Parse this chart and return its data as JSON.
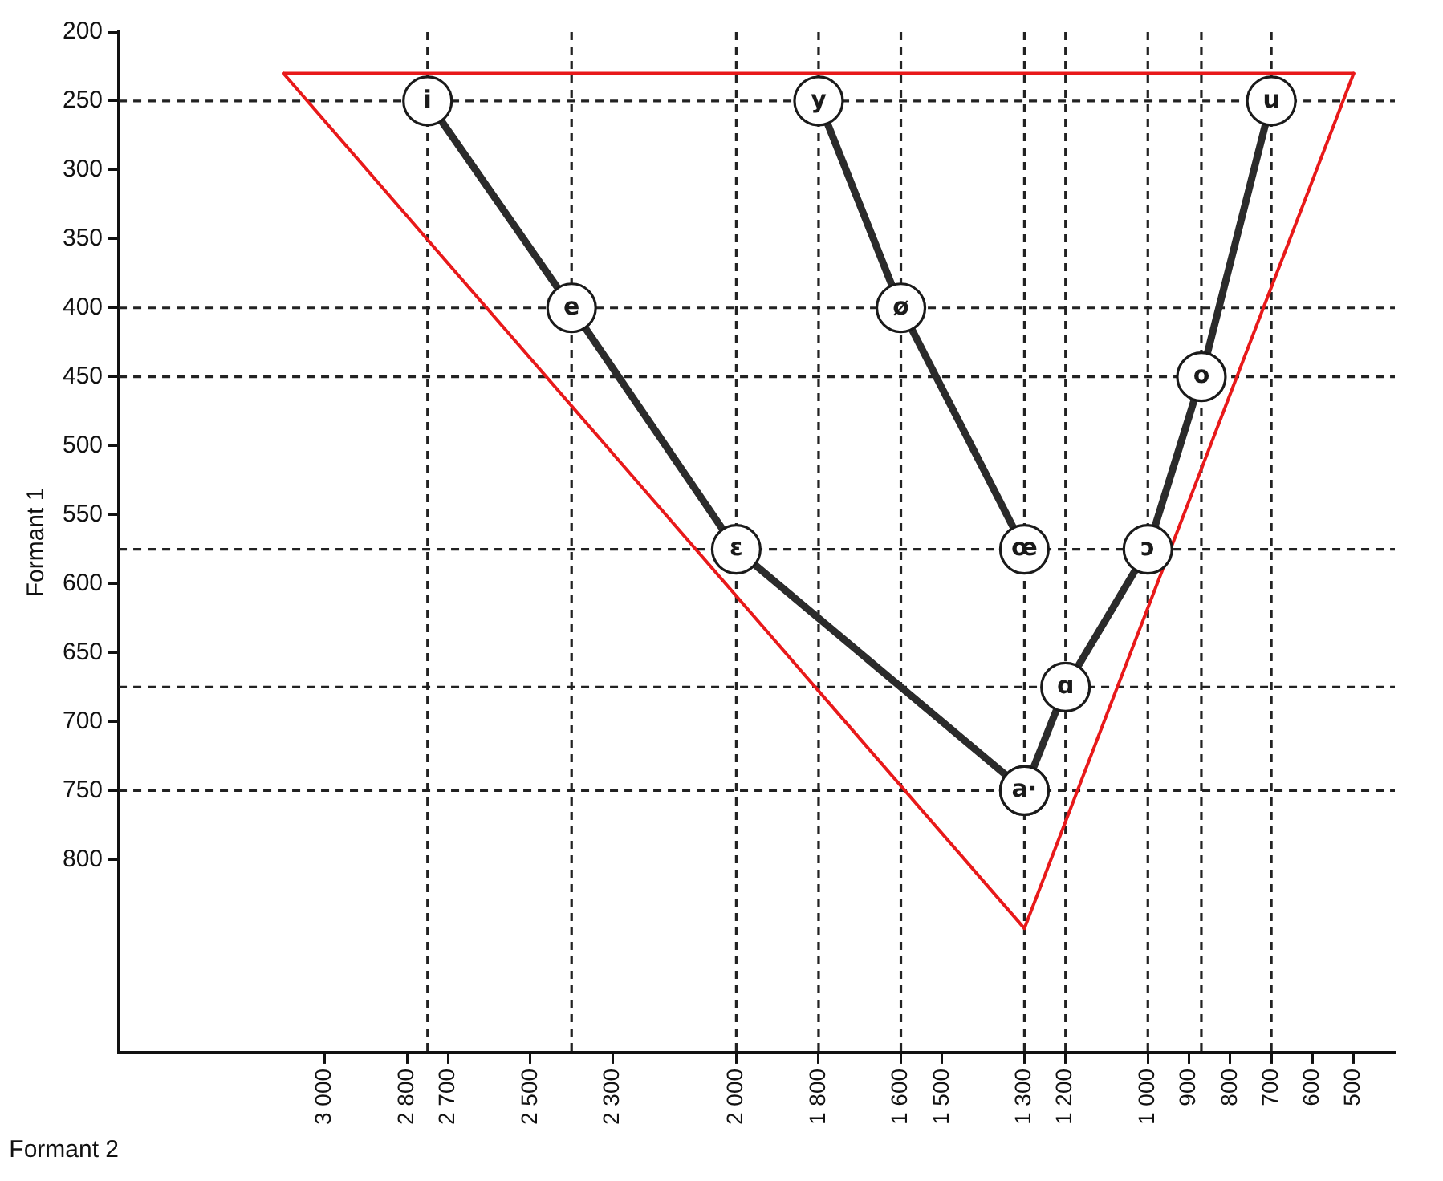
{
  "chart_data": {
    "type": "line",
    "xlabel": "Formant 2",
    "ylabel": "Formant 1",
    "xlim": [
      3500,
      400
    ],
    "ylim": [
      940,
      200
    ],
    "xticks": [
      {
        "value": 3000,
        "label": "3 000"
      },
      {
        "value": 2800,
        "label": "2 800"
      },
      {
        "value": 2700,
        "label": "2 700"
      },
      {
        "value": 2500,
        "label": "2 500"
      },
      {
        "value": 2300,
        "label": "2 300"
      },
      {
        "value": 2000,
        "label": "2 000"
      },
      {
        "value": 1800,
        "label": "1 800"
      },
      {
        "value": 1600,
        "label": "1 600"
      },
      {
        "value": 1500,
        "label": "1 500"
      },
      {
        "value": 1300,
        "label": "1 300"
      },
      {
        "value": 1200,
        "label": "1 200"
      },
      {
        "value": 1000,
        "label": "1 000"
      },
      900,
      800,
      700,
      600,
      500
    ],
    "yticks": [
      200,
      250,
      300,
      350,
      400,
      450,
      500,
      550,
      600,
      650,
      700,
      750,
      800
    ],
    "marker": "circle",
    "series": [
      {
        "color": "#2b2b2b",
        "x": [
          2750,
          2400,
          2000,
          1300
        ],
        "values": [
          250,
          400,
          575,
          750
        ]
      },
      {
        "color": "#2b2b2b",
        "x": [
          1800,
          1600,
          1300
        ],
        "values": [
          250,
          400,
          575
        ]
      },
      {
        "color": "#2b2b2b",
        "x": [
          700,
          870,
          1000,
          1200,
          1300
        ],
        "values": [
          250,
          450,
          575,
          675,
          750
        ]
      },
      {
        "color": "#e8191a",
        "marker": "none",
        "x": [
          3100,
          1300,
          500
        ],
        "values": [
          230,
          850,
          230
        ]
      },
      {
        "color": "#e8191a",
        "marker": "none",
        "x": [
          3100,
          500
        ],
        "values": [
          230,
          230
        ]
      }
    ],
    "ref_lines": [
      {
        "axis": "x",
        "value": 2750,
        "line_style": "dashed",
        "color": "#222222"
      },
      {
        "axis": "x",
        "value": 2400,
        "line_style": "dashed",
        "color": "#222222"
      },
      {
        "axis": "x",
        "value": 2000,
        "line_style": "dashed",
        "color": "#222222"
      },
      {
        "axis": "x",
        "value": 1800,
        "line_style": "dashed",
        "color": "#222222"
      },
      {
        "axis": "x",
        "value": 1600,
        "line_style": "dashed",
        "color": "#222222"
      },
      {
        "axis": "x",
        "value": 1300,
        "line_style": "dashed",
        "color": "#222222"
      },
      {
        "axis": "x",
        "value": 1200,
        "line_style": "dashed",
        "color": "#222222"
      },
      {
        "axis": "x",
        "value": 1000,
        "line_style": "dashed",
        "color": "#222222"
      },
      {
        "axis": "x",
        "value": 870,
        "line_style": "dashed",
        "color": "#222222"
      },
      {
        "axis": "x",
        "value": 700,
        "line_style": "dashed",
        "color": "#222222"
      },
      {
        "axis": "y",
        "value": 250,
        "line_style": "dashed",
        "color": "#222222"
      },
      {
        "axis": "y",
        "value": 400,
        "line_style": "dashed",
        "color": "#222222"
      },
      {
        "axis": "y",
        "value": 450,
        "line_style": "dashed",
        "color": "#222222"
      },
      {
        "axis": "y",
        "value": 575,
        "line_style": "dashed",
        "color": "#222222"
      },
      {
        "axis": "y",
        "value": 675,
        "line_style": "dashed",
        "color": "#222222"
      },
      {
        "axis": "y",
        "value": 750,
        "line_style": "dashed",
        "color": "#222222"
      }
    ],
    "annotations": [
      {
        "text": "i",
        "x": 2750,
        "y": 250
      },
      {
        "text": "y",
        "x": 1800,
        "y": 250
      },
      {
        "text": "u",
        "x": 700,
        "y": 250
      },
      {
        "text": "e",
        "x": 2400,
        "y": 400
      },
      {
        "text": "ø",
        "x": 1600,
        "y": 400
      },
      {
        "text": "o",
        "x": 870,
        "y": 450
      },
      {
        "text": "ɛ",
        "x": 2000,
        "y": 575
      },
      {
        "text": "œ",
        "x": 1300,
        "y": 575
      },
      {
        "text": "ɔ",
        "x": 1000,
        "y": 575
      },
      {
        "text": "ɑ",
        "x": 1200,
        "y": 675
      },
      {
        "text": "a·",
        "x": 1300,
        "y": 750
      }
    ]
  }
}
